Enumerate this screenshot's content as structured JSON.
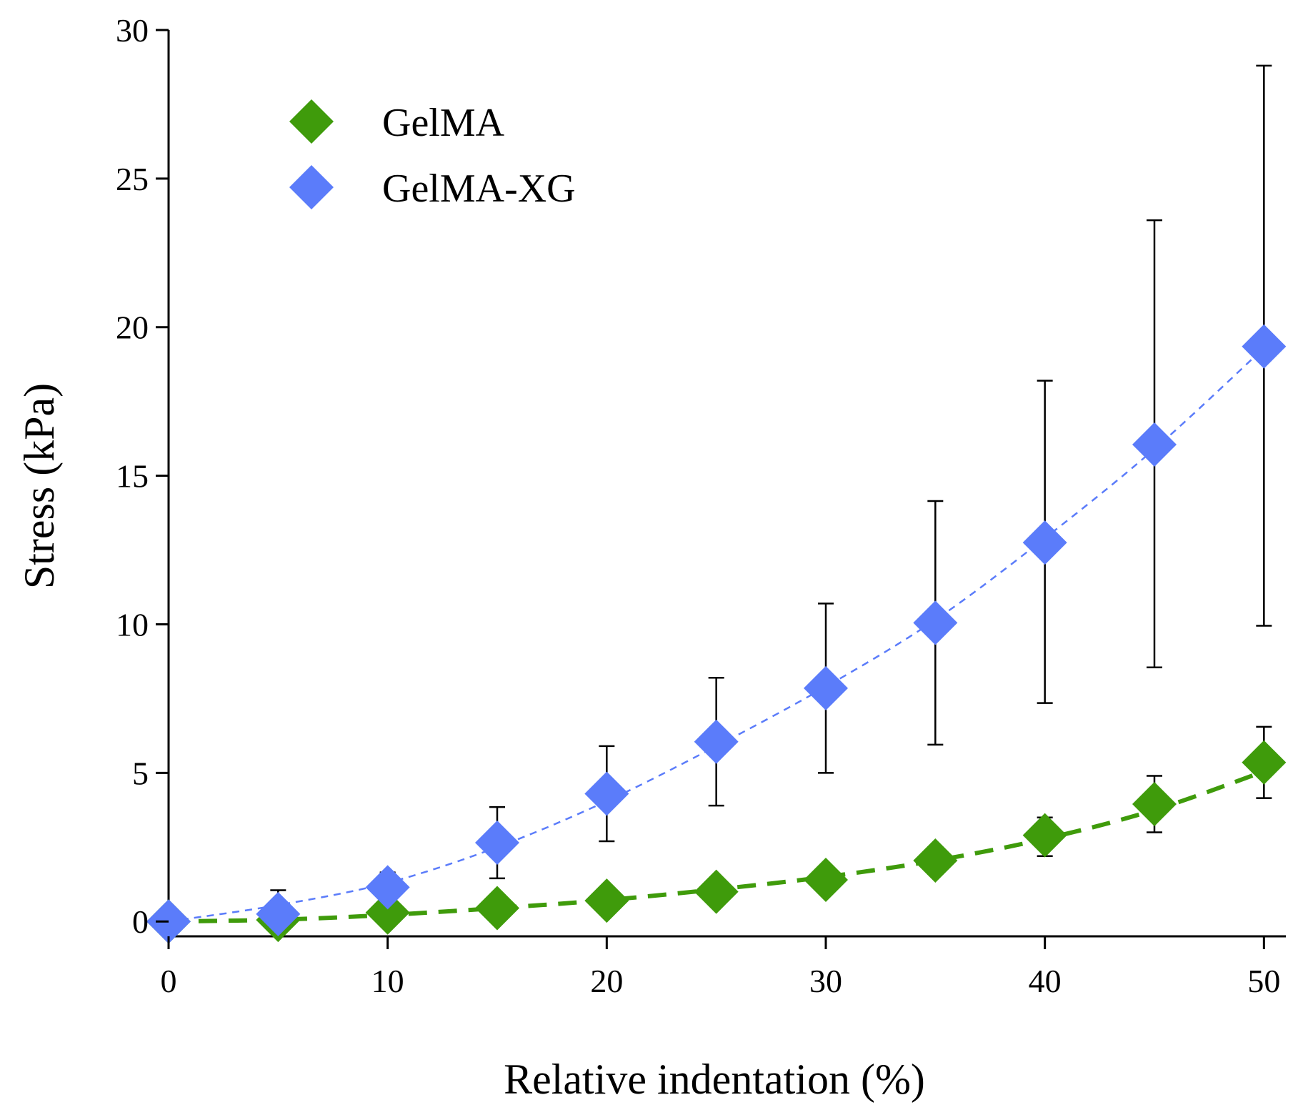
{
  "chart_data": {
    "type": "scatter",
    "title": "",
    "xlabel": "Relative indentation (%)",
    "ylabel": "Stress (kPa)",
    "xlim": [
      0,
      51
    ],
    "ylim": [
      -0.5,
      30
    ],
    "xticks": [
      0,
      10,
      20,
      30,
      40,
      50
    ],
    "yticks": [
      0,
      5,
      10,
      15,
      20,
      25,
      30
    ],
    "legend_position": "top-left",
    "series": [
      {
        "name": "GelMA",
        "color": "#3f9b0b",
        "marker": "diamond",
        "fit_line": "dashed",
        "x": [
          0,
          5,
          10,
          15,
          20,
          25,
          30,
          35,
          40,
          45,
          50
        ],
        "y": [
          0,
          0.05,
          0.3,
          0.45,
          0.7,
          1.0,
          1.4,
          2.05,
          2.9,
          3.95,
          5.35
        ],
        "error_low": [
          0,
          0.05,
          0.25,
          0.2,
          0.25,
          0.2,
          0.3,
          0.45,
          0.7,
          0.95,
          1.2
        ],
        "error_high": [
          0,
          0.05,
          0.5,
          0.2,
          0.25,
          0.2,
          0.3,
          0.45,
          0.6,
          0.95,
          1.2
        ],
        "fit": [
          0,
          0.06,
          0.22,
          0.45,
          0.72,
          1.08,
          1.5,
          2.05,
          2.78,
          3.75,
          5.05
        ]
      },
      {
        "name": "GelMA-XG",
        "color": "#5b7cfa",
        "marker": "diamond",
        "fit_line": "dotted",
        "x": [
          0,
          5,
          10,
          15,
          20,
          25,
          30,
          35,
          40,
          45,
          50
        ],
        "y": [
          0,
          0.25,
          1.15,
          2.65,
          4.3,
          6.05,
          7.85,
          10.05,
          12.75,
          16.05,
          19.35
        ],
        "error_low": [
          0,
          0.05,
          0.35,
          1.2,
          1.6,
          2.15,
          2.85,
          4.1,
          5.4,
          7.5,
          9.4
        ],
        "error_high": [
          0,
          0.8,
          0.5,
          1.2,
          1.6,
          2.15,
          2.85,
          4.1,
          5.45,
          7.55,
          9.45
        ],
        "fit": [
          0,
          0.55,
          1.3,
          2.5,
          4.05,
          5.9,
          7.9,
          10.15,
          12.9,
          15.9,
          19.3
        ]
      }
    ]
  }
}
